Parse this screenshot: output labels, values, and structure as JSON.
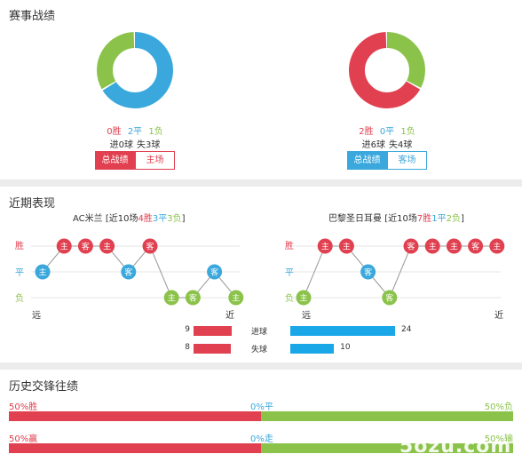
{
  "record": {
    "title": "赛事战绩",
    "home": {
      "wins": "0胜",
      "draws": "2平",
      "losses": "1负",
      "goals": "进0球",
      "conceded": "失3球",
      "donut": {
        "win": 0,
        "draw": 2,
        "loss": 1
      },
      "tabs": [
        "总战绩",
        "主场"
      ]
    },
    "away": {
      "wins": "2胜",
      "draws": "0平",
      "losses": "1负",
      "goals": "进6球",
      "conceded": "失4球",
      "donut": {
        "win": 2,
        "draw": 0,
        "loss": 1
      },
      "tabs": [
        "总战绩",
        "客场"
      ]
    }
  },
  "recent": {
    "title": "近期表现",
    "y_labels": [
      "胜",
      "平",
      "负"
    ],
    "x_labels": [
      "远",
      "近"
    ],
    "home": {
      "name": "AC米兰",
      "summary_prefix": "[近10场",
      "wins": "4胜",
      "draws": "3平",
      "losses": "3负",
      "summary_suffix": "]",
      "results": [
        "D",
        "W",
        "W",
        "W",
        "D",
        "W",
        "L",
        "L",
        "D",
        "L"
      ],
      "venues": [
        "主",
        "主",
        "客",
        "主",
        "客",
        "客",
        "主",
        "客",
        "客",
        "主"
      ],
      "stats": {
        "scored_label": "进球",
        "scored": 9,
        "conceded_label": "失球",
        "conceded": 8
      }
    },
    "away": {
      "name": "巴黎圣日耳曼",
      "summary_prefix": "[近10场",
      "wins": "7胜",
      "draws": "1平",
      "losses": "2负",
      "summary_suffix": "]",
      "results": [
        "L",
        "W",
        "W",
        "D",
        "L",
        "W",
        "W",
        "W",
        "W",
        "W"
      ],
      "venues": [
        "主",
        "主",
        "主",
        "客",
        "客",
        "客",
        "主",
        "主",
        "客",
        "主"
      ],
      "stats": {
        "scored": 24,
        "conceded": 10
      }
    }
  },
  "history": {
    "title": "历史交锋往绩",
    "row1": {
      "left": "50%胜",
      "mid": "0%平",
      "right": "50%负",
      "win": 50,
      "draw": 0,
      "loss": 50
    },
    "row2": {
      "left": "50%赢",
      "mid": "0%走",
      "right": "50%输",
      "win": 50,
      "draw": 0,
      "loss": 50
    }
  },
  "colors": {
    "win": "#e04050",
    "draw": "#3aa8dc",
    "loss": "#8bc34a"
  },
  "watermark": "5ozu.com"
}
